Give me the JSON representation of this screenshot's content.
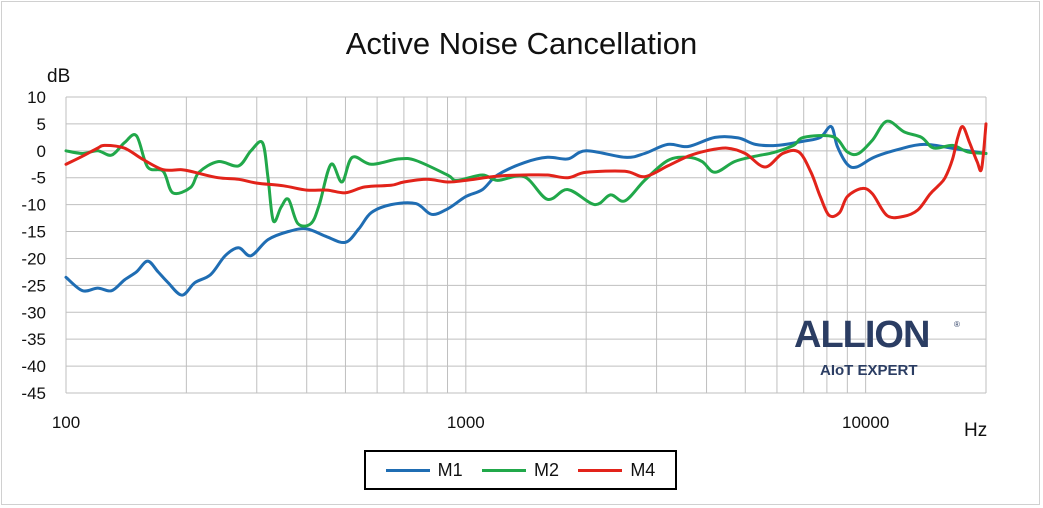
{
  "chart_data": {
    "type": "line",
    "title": "Active Noise Cancellation",
    "ylabel": "dB",
    "xlabel": "Hz",
    "x_scale": "log",
    "xlim": [
      100,
      20000
    ],
    "ylim": [
      -45,
      10
    ],
    "grid": true,
    "legend_position": "bottom",
    "y_ticks": [
      "10",
      "5",
      "0",
      "-5",
      "-10",
      "-15",
      "-20",
      "-25",
      "-30",
      "-35",
      "-40",
      "-45"
    ],
    "x_ticks": [
      "100",
      "1000",
      "10000"
    ],
    "series": [
      {
        "name": "M1",
        "color": "#1f6db3",
        "points": [
          [
            100,
            -23.5
          ],
          [
            110,
            -26
          ],
          [
            120,
            -25.5
          ],
          [
            130,
            -26
          ],
          [
            140,
            -24
          ],
          [
            150,
            -22.5
          ],
          [
            160,
            -20.5
          ],
          [
            170,
            -22.5
          ],
          [
            180,
            -24.5
          ],
          [
            195,
            -26.8
          ],
          [
            210,
            -24.5
          ],
          [
            230,
            -23
          ],
          [
            250,
            -19.5
          ],
          [
            270,
            -18
          ],
          [
            290,
            -19.5
          ],
          [
            320,
            -16.5
          ],
          [
            360,
            -15
          ],
          [
            400,
            -14.5
          ],
          [
            450,
            -16
          ],
          [
            500,
            -17
          ],
          [
            540,
            -14.5
          ],
          [
            580,
            -11.5
          ],
          [
            650,
            -10
          ],
          [
            750,
            -9.8
          ],
          [
            820,
            -11.8
          ],
          [
            900,
            -10.8
          ],
          [
            1000,
            -8.5
          ],
          [
            1100,
            -7.2
          ],
          [
            1200,
            -4.5
          ],
          [
            1400,
            -2.2
          ],
          [
            1600,
            -1.2
          ],
          [
            1800,
            -1.5
          ],
          [
            2000,
            0
          ],
          [
            2500,
            -1.2
          ],
          [
            2800,
            -0.5
          ],
          [
            3200,
            1.2
          ],
          [
            3600,
            0.8
          ],
          [
            4200,
            2.5
          ],
          [
            4800,
            2.4
          ],
          [
            5300,
            1.2
          ],
          [
            6000,
            1.0
          ],
          [
            7000,
            1.8
          ],
          [
            7700,
            2.5
          ],
          [
            8200,
            4.5
          ],
          [
            8500,
            0.8
          ],
          [
            9000,
            -2.5
          ],
          [
            9500,
            -3
          ],
          [
            10500,
            -1.2
          ],
          [
            12000,
            0.2
          ],
          [
            14000,
            1.2
          ],
          [
            17000,
            0.3
          ],
          [
            20000,
            -0.5
          ]
        ]
      },
      {
        "name": "M2",
        "color": "#21a84a",
        "points": [
          [
            100,
            0
          ],
          [
            110,
            -0.5
          ],
          [
            120,
            0
          ],
          [
            130,
            -0.8
          ],
          [
            140,
            1.5
          ],
          [
            150,
            2.8
          ],
          [
            160,
            -3
          ],
          [
            175,
            -3.8
          ],
          [
            185,
            -7.8
          ],
          [
            205,
            -6.8
          ],
          [
            215,
            -4
          ],
          [
            240,
            -2
          ],
          [
            270,
            -2.8
          ],
          [
            290,
            0
          ],
          [
            310,
            1.5
          ],
          [
            320,
            -5
          ],
          [
            330,
            -13
          ],
          [
            345,
            -10.5
          ],
          [
            360,
            -9
          ],
          [
            380,
            -13.5
          ],
          [
            410,
            -13.5
          ],
          [
            430,
            -10
          ],
          [
            460,
            -2.5
          ],
          [
            490,
            -5.8
          ],
          [
            520,
            -1.2
          ],
          [
            580,
            -2.5
          ],
          [
            680,
            -1.5
          ],
          [
            750,
            -1.8
          ],
          [
            900,
            -4.5
          ],
          [
            950,
            -5.5
          ],
          [
            1100,
            -4.5
          ],
          [
            1200,
            -5.5
          ],
          [
            1400,
            -4.8
          ],
          [
            1600,
            -9
          ],
          [
            1800,
            -7.2
          ],
          [
            2100,
            -10
          ],
          [
            2300,
            -8.2
          ],
          [
            2500,
            -9.3
          ],
          [
            2800,
            -5.5
          ],
          [
            3200,
            -1.8
          ],
          [
            3600,
            -1.2
          ],
          [
            3900,
            -2
          ],
          [
            4200,
            -4
          ],
          [
            4700,
            -2
          ],
          [
            5300,
            -1
          ],
          [
            5900,
            -0.3
          ],
          [
            6600,
            1
          ],
          [
            7000,
            2.5
          ],
          [
            8300,
            2.6
          ],
          [
            9000,
            -0.2
          ],
          [
            9600,
            -0.5
          ],
          [
            10400,
            2
          ],
          [
            11300,
            5.5
          ],
          [
            12500,
            3.5
          ],
          [
            13800,
            2.5
          ],
          [
            14800,
            0.5
          ],
          [
            16500,
            1
          ],
          [
            18000,
            -0.2
          ],
          [
            20000,
            -0.5
          ]
        ]
      },
      {
        "name": "M4",
        "color": "#e2231a",
        "points": [
          [
            100,
            -2.5
          ],
          [
            110,
            -1
          ],
          [
            120,
            0.5
          ],
          [
            125,
            1
          ],
          [
            140,
            0.5
          ],
          [
            155,
            -1.5
          ],
          [
            175,
            -3.5
          ],
          [
            195,
            -3.5
          ],
          [
            210,
            -4
          ],
          [
            240,
            -5
          ],
          [
            270,
            -5.3
          ],
          [
            300,
            -6
          ],
          [
            350,
            -6.5
          ],
          [
            400,
            -7.3
          ],
          [
            450,
            -7.3
          ],
          [
            500,
            -7.8
          ],
          [
            560,
            -6.7
          ],
          [
            650,
            -6.4
          ],
          [
            700,
            -5.8
          ],
          [
            800,
            -5.3
          ],
          [
            900,
            -5.8
          ],
          [
            1000,
            -5.5
          ],
          [
            1200,
            -4.7
          ],
          [
            1400,
            -4.5
          ],
          [
            1600,
            -4.5
          ],
          [
            1800,
            -5
          ],
          [
            2000,
            -4
          ],
          [
            2500,
            -3.8
          ],
          [
            2800,
            -4.8
          ],
          [
            3200,
            -2.8
          ],
          [
            3600,
            -1
          ],
          [
            4000,
            0
          ],
          [
            4500,
            0.5
          ],
          [
            5000,
            -0.5
          ],
          [
            5600,
            -3
          ],
          [
            6200,
            -0.5
          ],
          [
            6800,
            -0.2
          ],
          [
            7300,
            -4
          ],
          [
            7700,
            -8.5
          ],
          [
            8100,
            -12
          ],
          [
            8600,
            -11.5
          ],
          [
            9000,
            -8.5
          ],
          [
            9800,
            -7
          ],
          [
            10400,
            -8
          ],
          [
            11300,
            -12
          ],
          [
            12400,
            -12.2
          ],
          [
            13500,
            -11
          ],
          [
            14500,
            -8
          ],
          [
            15200,
            -6.5
          ],
          [
            15800,
            -5
          ],
          [
            16500,
            -1.5
          ],
          [
            17000,
            2.5
          ],
          [
            17500,
            4.5
          ],
          [
            18200,
            1.5
          ],
          [
            19000,
            -2
          ],
          [
            19500,
            -3.3
          ],
          [
            20000,
            5
          ]
        ]
      }
    ]
  },
  "logo": {
    "name": "ALLION",
    "tagline": "AIoT EXPERT"
  }
}
